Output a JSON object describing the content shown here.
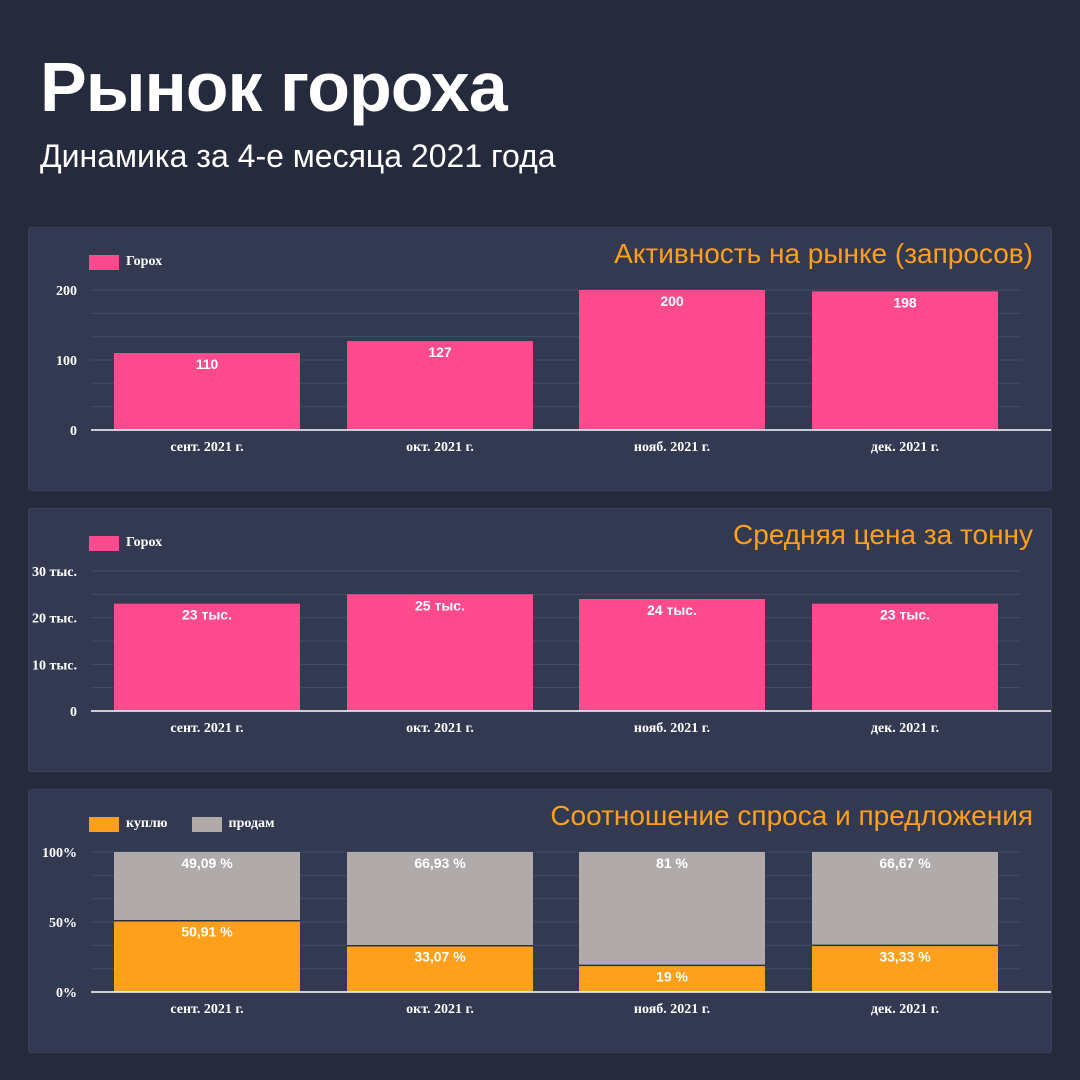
{
  "title": "Рынок гороха",
  "subtitle": "Динамика за 4-е месяца 2021 года",
  "colors": {
    "pink": "#ff4b8e",
    "orange": "#ffa01c",
    "grey": "#b0aaaa",
    "accent_title": "#ff9f1a"
  },
  "chart_data": [
    {
      "id": "activity",
      "type": "bar",
      "title": "Активность на рынке (запросов)",
      "categories": [
        "сент. 2021 г.",
        "окт. 2021 г.",
        "нояб. 2021 г.",
        "дек. 2021 г."
      ],
      "series": [
        {
          "name": "Горох",
          "values": [
            110,
            127,
            200,
            198
          ],
          "labels": [
            "110",
            "127",
            "200",
            "198"
          ]
        }
      ],
      "ylim": [
        0,
        200
      ],
      "yticks": [
        0,
        100,
        200
      ],
      "ytick_labels": [
        "0",
        "100",
        "200"
      ],
      "grid": true,
      "legend": "top-left"
    },
    {
      "id": "price",
      "type": "bar",
      "title": "Средняя цена за тонну",
      "categories": [
        "сент. 2021 г.",
        "окт. 2021 г.",
        "нояб. 2021 г.",
        "дек. 2021 г."
      ],
      "series": [
        {
          "name": "Горох",
          "values": [
            23000,
            25000,
            24000,
            23000
          ],
          "labels": [
            "23 тыс.",
            "25 тыс.",
            "24 тыс.",
            "23 тыс."
          ]
        }
      ],
      "ylim": [
        0,
        30000
      ],
      "yticks": [
        0,
        10000,
        20000,
        30000
      ],
      "ytick_labels": [
        "0",
        "10 тыс.",
        "20 тыс.",
        "30 тыс."
      ],
      "grid": true,
      "legend": "top-left"
    },
    {
      "id": "ratio",
      "type": "bar",
      "stacked": true,
      "title": "Соотношение спроса и предложения",
      "categories": [
        "сент. 2021 г.",
        "окт. 2021 г.",
        "нояб. 2021 г.",
        "дек. 2021 г."
      ],
      "series": [
        {
          "name": "куплю",
          "values": [
            50.91,
            33.07,
            19,
            33.33
          ],
          "labels": [
            "50,91 %",
            "33,07 %",
            "19 %",
            "33,33 %"
          ]
        },
        {
          "name": "продам",
          "values": [
            49.09,
            66.93,
            81,
            66.67
          ],
          "labels": [
            "49,09 %",
            "66,93 %",
            "81 %",
            "66,67 %"
          ]
        }
      ],
      "ylim": [
        0,
        100
      ],
      "yticks": [
        0,
        50,
        100
      ],
      "ytick_labels": [
        "0%",
        "50%",
        "100%"
      ],
      "grid": true,
      "legend": "top-left"
    }
  ]
}
